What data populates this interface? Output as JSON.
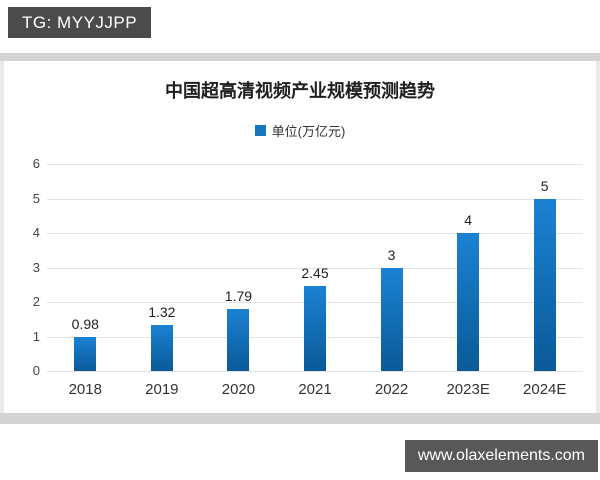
{
  "watermarks": {
    "tg_badge": "TG: MYYJJPP",
    "website": "www.olaxelements.com"
  },
  "chart_data": {
    "type": "bar",
    "title": "中国超高清视频产业规模预测趋势",
    "legend": "单位(万亿元)",
    "legend_position": "top",
    "categories": [
      "2018",
      "2019",
      "2020",
      "2021",
      "2022",
      "2023E",
      "2024E"
    ],
    "values": [
      0.98,
      1.32,
      1.79,
      2.45,
      3,
      4,
      5
    ],
    "value_labels": [
      "0.98",
      "1.32",
      "1.79",
      "2.45",
      "3",
      "4",
      "5"
    ],
    "y_ticks": [
      0,
      1,
      2,
      3,
      4,
      5,
      6
    ],
    "ylim": [
      0,
      6
    ],
    "grid": true,
    "colors": {
      "bar_top": "#1b82d4",
      "bar_bottom": "#0a5a97",
      "legend_marker": "#1877bc",
      "gridline": "#e3e3e3",
      "badge_bg": "#4b4b4b",
      "site_badge_bg": "#585858"
    }
  }
}
